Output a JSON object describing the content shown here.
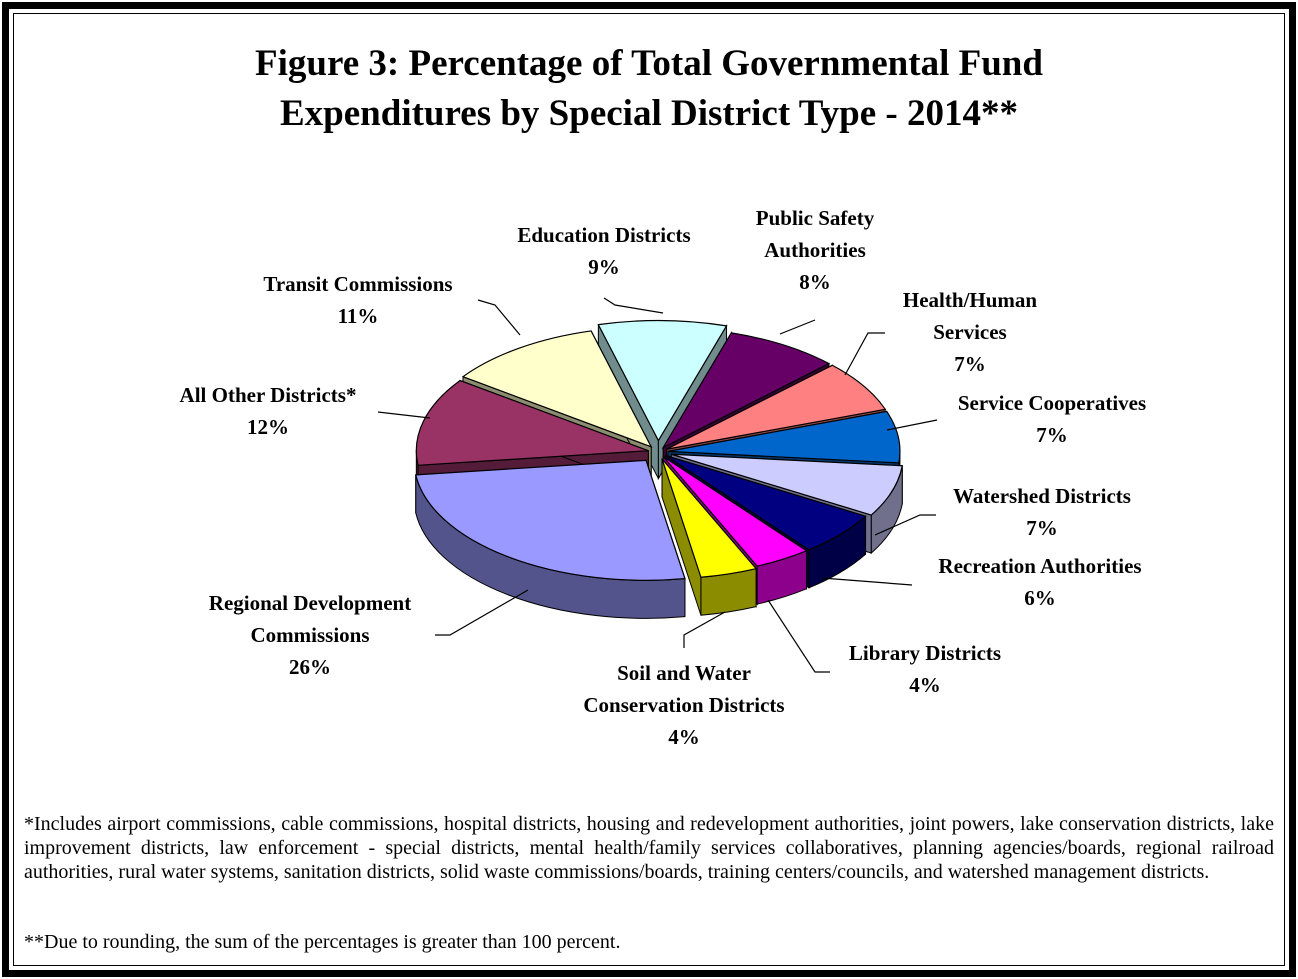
{
  "title_line1": "Figure 3:  Percentage of Total Governmental Fund",
  "title_line2": "Expenditures by Special District Type - 2014**",
  "footnotes": [
    "*Includes airport commissions, cable commissions, hospital districts, housing and redevelopment authorities, joint powers, lake conservation districts, lake improvement districts, law enforcement - special districts, mental health/family services collaboratives, planning agencies/boards, regional railroad authorities, rural water systems, sanitation districts, solid waste commissions/boards, training centers/councils, and watershed management districts.",
    "**Due to rounding, the sum of the percentages is greater than 100 percent."
  ],
  "chart_data": {
    "type": "pie",
    "style": "3d exploded",
    "title": "Figure 3:  Percentage of Total Governmental Fund Expenditures by Special District Type - 2014**",
    "unit": "%",
    "slices": [
      {
        "label_lines": [
          "Education Districts"
        ],
        "value": 9,
        "value_label": "9%",
        "color": "#ccffff"
      },
      {
        "label_lines": [
          "Public Safety",
          "Authorities"
        ],
        "value": 8,
        "value_label": "8%",
        "color": "#660066"
      },
      {
        "label_lines": [
          "Health/Human",
          "Services"
        ],
        "value": 7,
        "value_label": "7%",
        "color": "#ff8080"
      },
      {
        "label_lines": [
          "Service Cooperatives"
        ],
        "value": 7,
        "value_label": "7%",
        "color": "#0066cc"
      },
      {
        "label_lines": [
          "Watershed Districts"
        ],
        "value": 7,
        "value_label": "7%",
        "color": "#ccccff"
      },
      {
        "label_lines": [
          "Recreation Authorities"
        ],
        "value": 6,
        "value_label": "6%",
        "color": "#000080"
      },
      {
        "label_lines": [
          "Library Districts"
        ],
        "value": 4,
        "value_label": "4%",
        "color": "#ff00ff"
      },
      {
        "label_lines": [
          "Soil and Water",
          "Conservation Districts"
        ],
        "value": 4,
        "value_label": "4%",
        "color": "#ffff00"
      },
      {
        "label_lines": [
          "Regional Development",
          "Commissions"
        ],
        "value": 26,
        "value_label": "26%",
        "color": "#9999ff"
      },
      {
        "label_lines": [
          "All Other Districts*"
        ],
        "value": 12,
        "value_label": "12%",
        "color": "#993366"
      },
      {
        "label_lines": [
          "Transit Commissions"
        ],
        "value": 11,
        "value_label": "11%",
        "color": "#ffffcc"
      }
    ]
  }
}
